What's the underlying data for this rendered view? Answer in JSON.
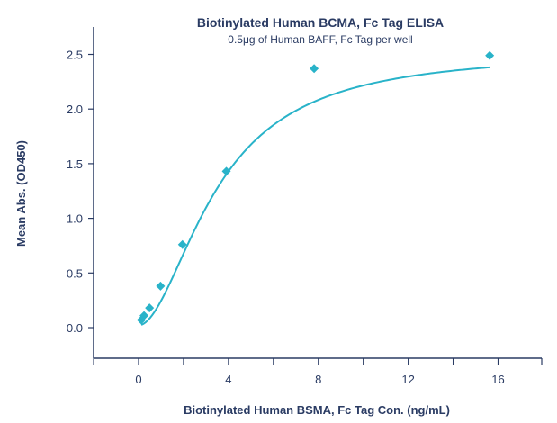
{
  "chart_data": {
    "type": "scatter",
    "title": "Biotinylated Human BCMA, Fc Tag ELISA",
    "subtitle": "0.5μg of Human BAFF, Fc Tag per well",
    "xlabel": "Biotinylated Human BSMA, Fc Tag Con. (ng/mL)",
    "ylabel": "Mean Abs. (OD450)",
    "xlim": [
      -2,
      18
    ],
    "ylim": [
      -0.15,
      2.75
    ],
    "x_ticks": [
      0,
      4,
      8,
      12,
      16
    ],
    "x_tick_labels": [
      "0",
      "4",
      "8",
      "12",
      "16"
    ],
    "x_minor_ticks": [
      -2,
      2,
      6,
      10,
      14,
      18
    ],
    "y_ticks": [
      0.0,
      0.5,
      1.0,
      1.5,
      2.0,
      2.5
    ],
    "y_tick_labels": [
      "0.0",
      "0.5",
      "1.0",
      "1.5",
      "2.0",
      "2.5"
    ],
    "grid": false,
    "legend": "none",
    "series": [
      {
        "marker": "diamond",
        "color": "#29b3c9",
        "x": [
          0.122,
          0.244,
          0.488,
          0.977,
          1.953,
          3.906,
          7.813,
          15.625
        ],
        "y": [
          0.07,
          0.11,
          0.18,
          0.38,
          0.76,
          1.43,
          2.37,
          2.49
        ]
      }
    ],
    "fit_curve": {
      "model": "4PL",
      "color": "#29b3c9",
      "bottom": 0.02,
      "top": 2.53,
      "ec50": 3.5,
      "hill": 1.85
    }
  }
}
